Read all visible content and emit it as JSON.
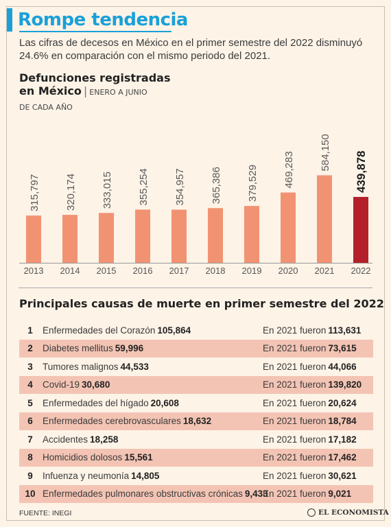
{
  "header": {
    "title": "Rompe tendencia",
    "subtitle": "Las cifras de decesos en México en el primer semestre del 2022 disminuyó 24.6% en comparación con el mismo periodo del 2021."
  },
  "chart_header": {
    "title_line1": "Defunciones registradas",
    "title_line2": "en México",
    "separator": "|",
    "range": "ENERO A JUNIO",
    "range2": "DE CADA AÑO"
  },
  "chart_data": {
    "type": "bar",
    "title": "Defunciones registradas en México",
    "categories": [
      "2013",
      "2014",
      "2015",
      "2016",
      "2017",
      "2018",
      "2019",
      "2020",
      "2021",
      "2022"
    ],
    "values": [
      315797,
      320174,
      333015,
      355254,
      354957,
      365386,
      379529,
      469283,
      584150,
      439878
    ],
    "labels": [
      "315,797",
      "320,174",
      "333,015",
      "355,254",
      "354,957",
      "365,386",
      "379,529",
      "469,283",
      "584,150",
      "439,878"
    ],
    "colors": {
      "bar": "#f19372",
      "highlight": "#b3202b"
    },
    "highlight_index": 9
  },
  "table": {
    "title": "Principales causas de muerte en primer semestre del 2022",
    "prev_prefix": "En 2021 fueron",
    "rows": [
      {
        "rank": "1",
        "cause": "Enfermedades del Corazón",
        "value": "105,864",
        "prev": "113,631"
      },
      {
        "rank": "2",
        "cause": "Diabetes mellitus",
        "value": "59,996",
        "prev": "73,615"
      },
      {
        "rank": "3",
        "cause": "Tumores malignos",
        "value": "44,533",
        "prev": "44,066"
      },
      {
        "rank": "4",
        "cause": "Covid-19",
        "value": "30,680",
        "prev": "139,820"
      },
      {
        "rank": "5",
        "cause": "Enfermedades del hígado",
        "value": "20,608",
        "prev": "20,624"
      },
      {
        "rank": "6",
        "cause": "Enfermedades cerebrovasculares",
        "value": "18,632",
        "prev": "18,784"
      },
      {
        "rank": "7",
        "cause": "Accidentes",
        "value": "18,258",
        "prev": "17,182"
      },
      {
        "rank": "8",
        "cause": "Homicidios dolosos",
        "value": "15,561",
        "prev": "17,462"
      },
      {
        "rank": "9",
        "cause": "Infuenza y neumonía",
        "value": "14,805",
        "prev": "30,621"
      },
      {
        "rank": "10",
        "cause": "Enfermedades pulmonares obstructivas crónicas",
        "value": "9,433",
        "prev": "9,021"
      }
    ]
  },
  "footer": {
    "source": "FUENTE: INEGI",
    "brand": "EL ECONOMISTA"
  }
}
